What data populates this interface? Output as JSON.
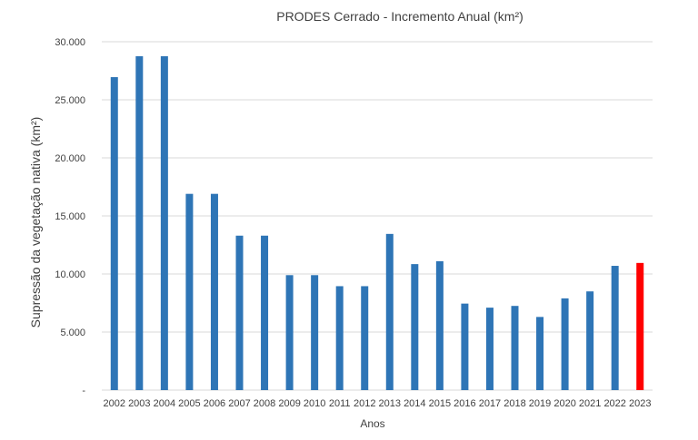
{
  "chart_data": {
    "type": "bar",
    "title": "PRODES Cerrado - Incremento Anual (km²)",
    "xlabel": "Anos",
    "ylabel": "Supressão da vegetação nativa (km²)",
    "ylim": [
      0,
      30000
    ],
    "yticks": [
      0,
      5000,
      10000,
      15000,
      20000,
      25000,
      30000
    ],
    "ytick_labels": [
      "-",
      "5.000",
      "10.000",
      "15.000",
      "20.000",
      "25.000",
      "30.000"
    ],
    "grid": true,
    "categories": [
      "2002",
      "2003",
      "2004",
      "2005",
      "2006",
      "2007",
      "2008",
      "2009",
      "2010",
      "2011",
      "2012",
      "2013",
      "2014",
      "2015",
      "2016",
      "2017",
      "2018",
      "2019",
      "2020",
      "2021",
      "2022",
      "2023"
    ],
    "values": [
      26950,
      28750,
      28750,
      16900,
      16900,
      13300,
      13300,
      9900,
      9900,
      8950,
      8950,
      13450,
      10850,
      11100,
      7450,
      7100,
      7250,
      6300,
      7900,
      8500,
      10700,
      10950
    ],
    "colors": {
      "default": "#2e75b6",
      "highlight": "#ff0000",
      "grid": "#d9d9d9"
    },
    "highlight_category": "2023"
  }
}
